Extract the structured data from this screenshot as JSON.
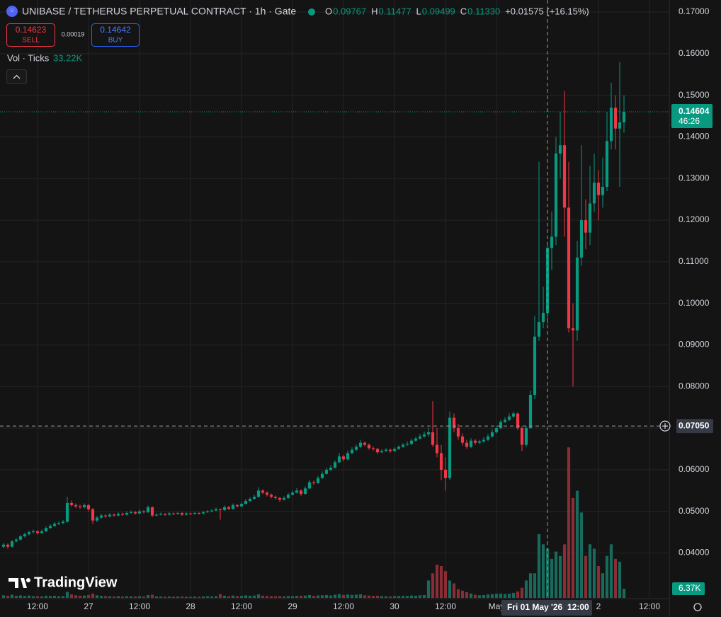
{
  "chart_data": {
    "type": "candlestick",
    "title": "UNIBASE / TETHERUS PERPETUAL CONTRACT · 1h · Gate",
    "legend": [
      {
        "label": "O",
        "value": "0.09767"
      },
      {
        "label": "H",
        "value": "0.11477"
      },
      {
        "label": "L",
        "value": "0.09499"
      },
      {
        "label": "C",
        "value": "0.11330"
      }
    ],
    "change": "+0.01575 (+16.15%)",
    "sell": {
      "price": "0.14623",
      "label": "SELL"
    },
    "spread": "0.00019",
    "buy": {
      "price": "0.14642",
      "label": "BUY"
    },
    "volume_legend": {
      "label": "Vol · Ticks",
      "value": "33.22K"
    },
    "watermark": "TradingView",
    "colors": {
      "up": "#089981",
      "down": "#f23645",
      "volume_up": "#176b5d",
      "volume_down": "#8a2d35"
    },
    "grid": true,
    "xlim": [
      -0.8333,
      156.6667
    ],
    "xticks": [
      {
        "value": 8,
        "label": "12:00"
      },
      {
        "value": 20,
        "label": "27"
      },
      {
        "value": 32,
        "label": "12:00"
      },
      {
        "value": 44,
        "label": "28"
      },
      {
        "value": 56,
        "label": "12:00"
      },
      {
        "value": 68,
        "label": "29"
      },
      {
        "value": 80,
        "label": "12:00"
      },
      {
        "value": 92,
        "label": "30"
      },
      {
        "value": 104,
        "label": "12:00"
      },
      {
        "value": 116,
        "label": "May"
      },
      {
        "value": 140,
        "label": "2"
      },
      {
        "value": 152,
        "label": "12:00"
      }
    ],
    "ylim": [
      0.0292,
      0.1729
    ],
    "yticks": [
      {
        "value": 0.04,
        "label": "0.04000"
      },
      {
        "value": 0.05,
        "label": "0.05000"
      },
      {
        "value": 0.06,
        "label": "0.06000"
      },
      {
        "value": 0.07,
        "label": "0.07000"
      },
      {
        "value": 0.08,
        "label": "0.08000"
      },
      {
        "value": 0.09,
        "label": "0.09000"
      },
      {
        "value": 0.1,
        "label": "0.10000"
      },
      {
        "value": 0.11,
        "label": "0.11000"
      },
      {
        "value": 0.12,
        "label": "0.12000"
      },
      {
        "value": 0.13,
        "label": "0.13000"
      },
      {
        "value": 0.14,
        "label": "0.14000"
      },
      {
        "value": 0.15,
        "label": "0.15000"
      },
      {
        "value": 0.16,
        "label": "0.16000"
      },
      {
        "value": 0.17,
        "label": "0.17000"
      }
    ],
    "vlim": [
      0,
      110000
    ],
    "last_price": {
      "value": 0.14604,
      "label": "0.14604"
    },
    "countdown": "46:26",
    "last_volume": {
      "value": 6370,
      "label": "6.37K"
    },
    "crosshair": {
      "x": 128,
      "y": {
        "value": 0.0705,
        "label": "0.07050"
      },
      "date": "Fri 01 May '26",
      "time": "12:00"
    },
    "candles": [
      [
        0.0415,
        0.0424,
        0.0411,
        0.042,
        1800
      ],
      [
        0.042,
        0.0423,
        0.041,
        0.0415,
        1500
      ],
      [
        0.0415,
        0.0431,
        0.0413,
        0.0428,
        2200
      ],
      [
        0.0428,
        0.0436,
        0.0425,
        0.0432,
        1400
      ],
      [
        0.0432,
        0.0443,
        0.043,
        0.044,
        1700
      ],
      [
        0.044,
        0.0449,
        0.0437,
        0.0445,
        1300
      ],
      [
        0.0445,
        0.0454,
        0.0442,
        0.045,
        1600
      ],
      [
        0.045,
        0.0456,
        0.0447,
        0.0452,
        1100
      ],
      [
        0.0452,
        0.0455,
        0.0444,
        0.0448,
        1200
      ],
      [
        0.0448,
        0.0456,
        0.0446,
        0.0452,
        1000
      ],
      [
        0.0452,
        0.0464,
        0.045,
        0.046,
        1500
      ],
      [
        0.046,
        0.0469,
        0.0458,
        0.0465,
        1300
      ],
      [
        0.0465,
        0.0474,
        0.0463,
        0.047,
        1400
      ],
      [
        0.047,
        0.0476,
        0.0467,
        0.0472,
        1100
      ],
      [
        0.0472,
        0.0479,
        0.0469,
        0.0475,
        1200
      ],
      [
        0.0475,
        0.0535,
        0.0473,
        0.052,
        4200
      ],
      [
        0.052,
        0.0526,
        0.0511,
        0.0515,
        2400
      ],
      [
        0.0515,
        0.0519,
        0.0508,
        0.0512,
        1800
      ],
      [
        0.0512,
        0.0516,
        0.0506,
        0.051,
        1500
      ],
      [
        0.051,
        0.0519,
        0.0507,
        0.0515,
        1600
      ],
      [
        0.0515,
        0.0518,
        0.05,
        0.0505,
        2000
      ],
      [
        0.0505,
        0.0508,
        0.047,
        0.0478,
        3000
      ],
      [
        0.0478,
        0.0489,
        0.0474,
        0.0485,
        1800
      ],
      [
        0.0485,
        0.0494,
        0.0482,
        0.049,
        1400
      ],
      [
        0.049,
        0.0493,
        0.0484,
        0.0488,
        1200
      ],
      [
        0.0488,
        0.0496,
        0.0485,
        0.0492,
        1100
      ],
      [
        0.0492,
        0.0495,
        0.0487,
        0.049,
        1000
      ],
      [
        0.049,
        0.0498,
        0.0488,
        0.0494,
        1200
      ],
      [
        0.0494,
        0.0497,
        0.0489,
        0.0492,
        900
      ],
      [
        0.0492,
        0.05,
        0.049,
        0.0496,
        1100
      ],
      [
        0.0496,
        0.0502,
        0.0494,
        0.0498,
        1000
      ],
      [
        0.0498,
        0.0501,
        0.0492,
        0.0495,
        1000
      ],
      [
        0.0495,
        0.0504,
        0.0493,
        0.05,
        1200
      ],
      [
        0.05,
        0.0503,
        0.0495,
        0.0498,
        900
      ],
      [
        0.0498,
        0.0514,
        0.0496,
        0.051,
        2000
      ],
      [
        0.051,
        0.0512,
        0.0486,
        0.049,
        2200
      ],
      [
        0.049,
        0.0495,
        0.0488,
        0.0492,
        1000
      ],
      [
        0.0492,
        0.0497,
        0.049,
        0.0494,
        900
      ],
      [
        0.0494,
        0.0496,
        0.0489,
        0.0492,
        800
      ],
      [
        0.0492,
        0.0498,
        0.049,
        0.0495,
        900
      ],
      [
        0.0495,
        0.0497,
        0.0491,
        0.0494,
        800
      ],
      [
        0.0494,
        0.0499,
        0.0492,
        0.0496,
        900
      ],
      [
        0.0496,
        0.0498,
        0.0489,
        0.0492,
        1000
      ],
      [
        0.0492,
        0.0498,
        0.049,
        0.0495,
        800
      ],
      [
        0.0495,
        0.0497,
        0.0491,
        0.0494,
        700
      ],
      [
        0.0494,
        0.0499,
        0.0492,
        0.0496,
        900
      ],
      [
        0.0496,
        0.0498,
        0.0492,
        0.0495,
        800
      ],
      [
        0.0495,
        0.0501,
        0.0493,
        0.0498,
        1000
      ],
      [
        0.0498,
        0.0503,
        0.0496,
        0.05,
        1100
      ],
      [
        0.05,
        0.0505,
        0.0498,
        0.0502,
        1000
      ],
      [
        0.0502,
        0.0509,
        0.05,
        0.0505,
        1200
      ],
      [
        0.0505,
        0.0507,
        0.048,
        0.0503,
        2600
      ],
      [
        0.0503,
        0.0514,
        0.0501,
        0.051,
        1500
      ],
      [
        0.051,
        0.0513,
        0.0503,
        0.0506,
        1100
      ],
      [
        0.0506,
        0.0519,
        0.0504,
        0.0515,
        1600
      ],
      [
        0.0515,
        0.0518,
        0.0509,
        0.0512,
        1200
      ],
      [
        0.0512,
        0.0522,
        0.051,
        0.0518,
        1400
      ],
      [
        0.0518,
        0.053,
        0.0516,
        0.0525,
        1700
      ],
      [
        0.0525,
        0.0534,
        0.0522,
        0.053,
        1500
      ],
      [
        0.053,
        0.054,
        0.0528,
        0.0535,
        1600
      ],
      [
        0.0535,
        0.0558,
        0.0533,
        0.055,
        2400
      ],
      [
        0.055,
        0.0553,
        0.0541,
        0.0545,
        1500
      ],
      [
        0.0545,
        0.0548,
        0.0536,
        0.054,
        1300
      ],
      [
        0.054,
        0.0543,
        0.0531,
        0.0535,
        1200
      ],
      [
        0.0535,
        0.0538,
        0.0528,
        0.0532,
        1100
      ],
      [
        0.0532,
        0.0535,
        0.0523,
        0.0528,
        1200
      ],
      [
        0.0528,
        0.0536,
        0.0526,
        0.0532,
        1000
      ],
      [
        0.0532,
        0.0544,
        0.053,
        0.054,
        1300
      ],
      [
        0.054,
        0.0549,
        0.0538,
        0.0545,
        1200
      ],
      [
        0.0545,
        0.0556,
        0.0543,
        0.055,
        1400
      ],
      [
        0.055,
        0.0553,
        0.0537,
        0.0542,
        1500
      ],
      [
        0.0542,
        0.056,
        0.054,
        0.0555,
        1600
      ],
      [
        0.0555,
        0.0576,
        0.0553,
        0.057,
        2000
      ],
      [
        0.057,
        0.0574,
        0.0564,
        0.0568,
        1400
      ],
      [
        0.0568,
        0.0585,
        0.0566,
        0.058,
        1700
      ],
      [
        0.058,
        0.0596,
        0.0578,
        0.059,
        1800
      ],
      [
        0.059,
        0.0605,
        0.0588,
        0.06,
        2000
      ],
      [
        0.06,
        0.0611,
        0.0597,
        0.0605,
        1700
      ],
      [
        0.0605,
        0.0623,
        0.0603,
        0.0618,
        2200
      ],
      [
        0.0618,
        0.064,
        0.0616,
        0.0632,
        2600
      ],
      [
        0.0632,
        0.0636,
        0.062,
        0.0625,
        2000
      ],
      [
        0.0625,
        0.0646,
        0.0622,
        0.064,
        2300
      ],
      [
        0.064,
        0.0654,
        0.0637,
        0.0648,
        2100
      ],
      [
        0.0648,
        0.066,
        0.0645,
        0.0655,
        2200
      ],
      [
        0.0655,
        0.0672,
        0.0652,
        0.0665,
        2500
      ],
      [
        0.0665,
        0.0668,
        0.0656,
        0.066,
        1800
      ],
      [
        0.066,
        0.0663,
        0.0648,
        0.0652,
        1600
      ],
      [
        0.0652,
        0.0656,
        0.0646,
        0.065,
        1400
      ],
      [
        0.065,
        0.0653,
        0.0638,
        0.0642,
        1500
      ],
      [
        0.0642,
        0.0649,
        0.064,
        0.0645,
        1200
      ],
      [
        0.0645,
        0.0652,
        0.0643,
        0.0648,
        1100
      ],
      [
        0.0648,
        0.0651,
        0.0641,
        0.0645,
        1000
      ],
      [
        0.0645,
        0.0654,
        0.0643,
        0.065,
        1200
      ],
      [
        0.065,
        0.0659,
        0.0648,
        0.0655,
        1300
      ],
      [
        0.0655,
        0.0664,
        0.0653,
        0.066,
        1400
      ],
      [
        0.066,
        0.0668,
        0.0657,
        0.0662,
        1300
      ],
      [
        0.0662,
        0.0675,
        0.066,
        0.067,
        1600
      ],
      [
        0.067,
        0.0679,
        0.0667,
        0.0675,
        1500
      ],
      [
        0.0675,
        0.0686,
        0.0672,
        0.068,
        1800
      ],
      [
        0.068,
        0.0692,
        0.0677,
        0.0685,
        2000
      ],
      [
        0.0685,
        0.07,
        0.068,
        0.069,
        12000
      ],
      [
        0.069,
        0.0765,
        0.0655,
        0.066,
        17000
      ],
      [
        0.066,
        0.07,
        0.063,
        0.064,
        23000
      ],
      [
        0.064,
        0.066,
        0.0575,
        0.06,
        22000
      ],
      [
        0.06,
        0.063,
        0.055,
        0.058,
        18500
      ],
      [
        0.058,
        0.074,
        0.0575,
        0.0725,
        12000
      ],
      [
        0.0725,
        0.0735,
        0.069,
        0.07,
        10000
      ],
      [
        0.07,
        0.071,
        0.0672,
        0.068,
        6000
      ],
      [
        0.068,
        0.0688,
        0.0658,
        0.0665,
        5000
      ],
      [
        0.0665,
        0.0672,
        0.065,
        0.0655,
        4000
      ],
      [
        0.0655,
        0.0676,
        0.0652,
        0.067,
        3000
      ],
      [
        0.067,
        0.0674,
        0.066,
        0.0665,
        2200
      ],
      [
        0.0665,
        0.0672,
        0.0662,
        0.0668,
        1800
      ],
      [
        0.0668,
        0.0678,
        0.0665,
        0.0672,
        2000
      ],
      [
        0.0672,
        0.0686,
        0.0669,
        0.068,
        2400
      ],
      [
        0.068,
        0.0697,
        0.0677,
        0.069,
        2600
      ],
      [
        0.069,
        0.0706,
        0.0687,
        0.07,
        2800
      ],
      [
        0.07,
        0.072,
        0.0697,
        0.0715,
        3000
      ],
      [
        0.0715,
        0.0726,
        0.0712,
        0.072,
        2700
      ],
      [
        0.072,
        0.0735,
        0.0717,
        0.0728,
        2900
      ],
      [
        0.0728,
        0.074,
        0.0724,
        0.0735,
        3500
      ],
      [
        0.0735,
        0.0738,
        0.0695,
        0.07,
        4500
      ],
      [
        0.07,
        0.0705,
        0.0645,
        0.066,
        7000
      ],
      [
        0.066,
        0.0705,
        0.0655,
        0.07,
        12000
      ],
      [
        0.07,
        0.079,
        0.0698,
        0.078,
        17000
      ],
      [
        0.078,
        0.097,
        0.077,
        0.092,
        17000
      ],
      [
        0.092,
        0.134,
        0.091,
        0.0955,
        44000
      ],
      [
        0.0955,
        0.104,
        0.094,
        0.0977,
        37000
      ],
      [
        0.0977,
        0.1148,
        0.095,
        0.1133,
        34000
      ],
      [
        0.1133,
        0.122,
        0.108,
        0.116,
        27000
      ],
      [
        0.116,
        0.14,
        0.114,
        0.136,
        32000
      ],
      [
        0.136,
        0.146,
        0.13,
        0.138,
        29000
      ],
      [
        0.138,
        0.151,
        0.116,
        0.123,
        37000
      ],
      [
        0.123,
        0.134,
        0.093,
        0.094,
        104000
      ],
      [
        0.094,
        0.1,
        0.08,
        0.0935,
        69000
      ],
      [
        0.0935,
        0.115,
        0.091,
        0.111,
        74000
      ],
      [
        0.111,
        0.138,
        0.109,
        0.12,
        59000
      ],
      [
        0.12,
        0.125,
        0.113,
        0.117,
        29000
      ],
      [
        0.117,
        0.133,
        0.114,
        0.124,
        37000
      ],
      [
        0.124,
        0.136,
        0.122,
        0.129,
        34000
      ],
      [
        0.129,
        0.132,
        0.12,
        0.126,
        22000
      ],
      [
        0.126,
        0.135,
        0.123,
        0.128,
        17000
      ],
      [
        0.128,
        0.146,
        0.127,
        0.139,
        29000
      ],
      [
        0.139,
        0.153,
        0.137,
        0.147,
        37000
      ],
      [
        0.147,
        0.15,
        0.137,
        0.142,
        27000
      ],
      [
        0.142,
        0.158,
        0.128,
        0.1435,
        25000
      ],
      [
        0.1435,
        0.15,
        0.141,
        0.146,
        6370
      ]
    ]
  }
}
